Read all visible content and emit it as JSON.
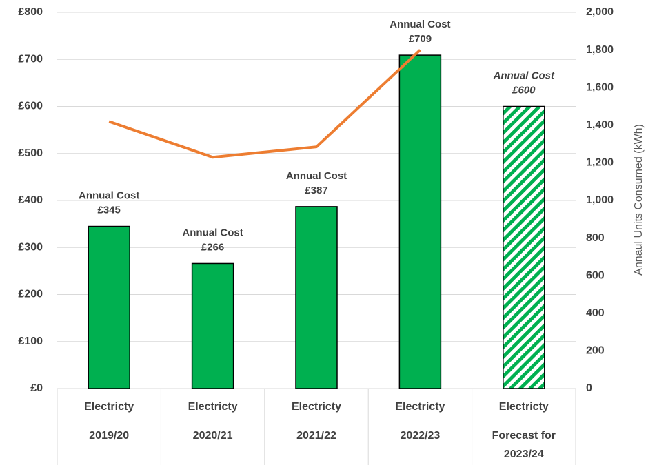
{
  "chart_data": {
    "type": "bar",
    "categories": [
      [
        "Electricty",
        "2019/20"
      ],
      [
        "Electricty",
        "2020/21"
      ],
      [
        "Electricty",
        "2021/22"
      ],
      [
        "Electricty",
        "2022/23"
      ],
      [
        "Electricty",
        "Forecast for",
        "2023/24"
      ]
    ],
    "series": [
      {
        "type": "bar",
        "color": "#00b050",
        "values": [
          345,
          266,
          387,
          709,
          600
        ],
        "value_labels": [
          [
            "Annual Cost",
            "£345"
          ],
          [
            "Annual Cost",
            "£266"
          ],
          [
            "Annual Cost",
            "£387"
          ],
          [
            "Annual Cost",
            "£709"
          ],
          [
            "Annual Cost",
            "£600"
          ]
        ],
        "hatched": [
          false,
          false,
          false,
          false,
          true
        ]
      },
      {
        "type": "line",
        "axis": "y2",
        "color": "#ed7d31",
        "values": [
          1420,
          1230,
          1285,
          1800,
          null
        ]
      }
    ],
    "ylim": [
      0,
      800
    ],
    "yticks": [
      {
        "value": 0,
        "label": "£0"
      },
      {
        "value": 100,
        "label": "£100"
      },
      {
        "value": 200,
        "label": "£200"
      },
      {
        "value": 300,
        "label": "£300"
      },
      {
        "value": 400,
        "label": "£400"
      },
      {
        "value": 500,
        "label": "£500"
      },
      {
        "value": 600,
        "label": "£600"
      },
      {
        "value": 700,
        "label": "£700"
      },
      {
        "value": 800,
        "label": "£800"
      }
    ],
    "y2lim": [
      0,
      2000
    ],
    "y2ticks": [
      0,
      200,
      400,
      600,
      800,
      {
        "value": 1000,
        "label": "1,000"
      },
      {
        "value": 1200,
        "label": "1,200"
      },
      {
        "value": 1400,
        "label": "1,400"
      },
      {
        "value": 1600,
        "label": "1,600"
      },
      {
        "value": 1800,
        "label": "1,800"
      },
      {
        "value": 2000,
        "label": "2,000"
      }
    ],
    "y2label": "Annaul Units Consumed (kWh)",
    "grid": true
  }
}
